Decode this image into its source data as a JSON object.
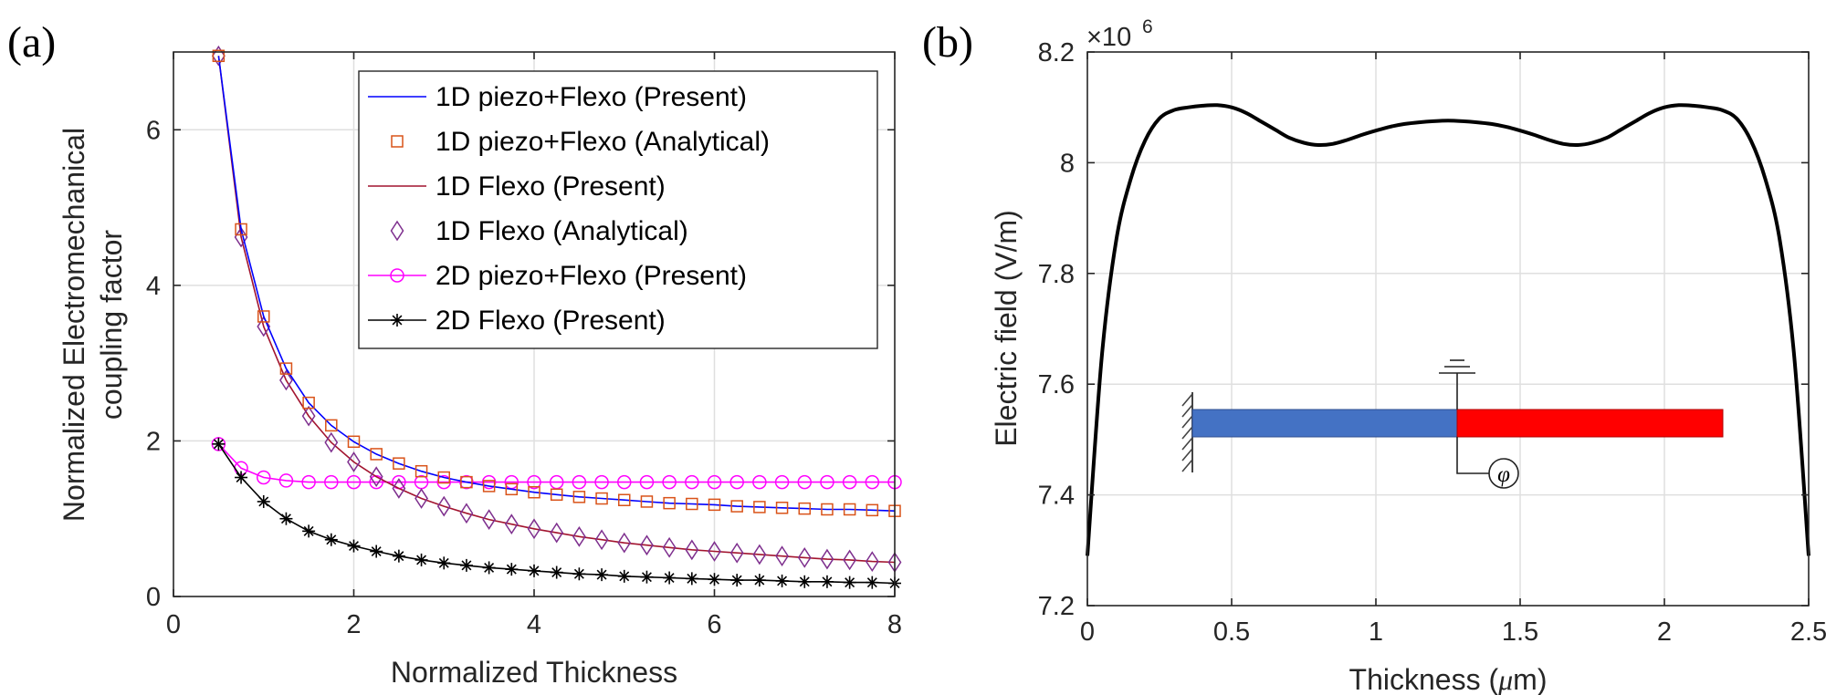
{
  "chart_data": [
    {
      "panel_label": "(a)",
      "type": "line",
      "xlabel": "Normalized Thickness",
      "ylabel_lines": [
        "Normalized Electromechanical",
        "coupling factor"
      ],
      "xlim": [
        0,
        8
      ],
      "ylim": [
        0,
        7
      ],
      "xticks": [
        0,
        2,
        4,
        6,
        8
      ],
      "yticks": [
        0,
        2,
        4,
        6
      ],
      "grid": true,
      "legend_position": "top-right",
      "series": [
        {
          "name": "1D piezo+Flexo (Present)",
          "color": "#0000ff",
          "marker": "none",
          "line": true,
          "x": [
            0.5,
            0.75,
            1.0,
            1.25,
            1.5,
            1.75,
            2.0,
            2.25,
            2.5,
            2.75,
            3.0,
            3.25,
            3.5,
            3.75,
            4.0,
            4.25,
            4.5,
            4.75,
            5.0,
            5.25,
            5.5,
            5.75,
            6.0,
            6.25,
            6.5,
            6.75,
            7.0,
            7.25,
            7.5,
            7.75,
            8.0
          ],
          "y": [
            6.95,
            4.72,
            3.6,
            2.93,
            2.49,
            2.2,
            1.99,
            1.83,
            1.71,
            1.61,
            1.53,
            1.47,
            1.42,
            1.38,
            1.34,
            1.31,
            1.28,
            1.26,
            1.24,
            1.22,
            1.2,
            1.19,
            1.18,
            1.16,
            1.15,
            1.14,
            1.13,
            1.12,
            1.12,
            1.11,
            1.1
          ]
        },
        {
          "name": "1D piezo+Flexo (Analytical)",
          "color": "#d95319",
          "marker": "square",
          "line": false,
          "x": [
            0.5,
            0.75,
            1.0,
            1.25,
            1.5,
            1.75,
            2.0,
            2.25,
            2.5,
            2.75,
            3.0,
            3.25,
            3.5,
            3.75,
            4.0,
            4.25,
            4.5,
            4.75,
            5.0,
            5.25,
            5.5,
            5.75,
            6.0,
            6.25,
            6.5,
            6.75,
            7.0,
            7.25,
            7.5,
            7.75,
            8.0
          ],
          "y": [
            6.95,
            4.72,
            3.6,
            2.93,
            2.49,
            2.2,
            1.99,
            1.83,
            1.71,
            1.61,
            1.53,
            1.47,
            1.42,
            1.38,
            1.34,
            1.31,
            1.28,
            1.26,
            1.24,
            1.22,
            1.2,
            1.19,
            1.18,
            1.16,
            1.15,
            1.14,
            1.13,
            1.12,
            1.12,
            1.11,
            1.1
          ]
        },
        {
          "name": "1D Flexo (Present)",
          "color": "#a2142f",
          "marker": "none",
          "line": true,
          "x": [
            0.5,
            0.75,
            1.0,
            1.25,
            1.5,
            1.75,
            2.0,
            2.25,
            2.5,
            2.75,
            3.0,
            3.25,
            3.5,
            3.75,
            4.0,
            4.25,
            4.5,
            4.75,
            5.0,
            5.25,
            5.5,
            5.75,
            6.0,
            6.25,
            6.5,
            6.75,
            7.0,
            7.25,
            7.5,
            7.75,
            8.0
          ],
          "y": [
            6.95,
            4.62,
            3.47,
            2.78,
            2.32,
            1.98,
            1.73,
            1.54,
            1.39,
            1.26,
            1.16,
            1.07,
            0.99,
            0.93,
            0.87,
            0.82,
            0.77,
            0.73,
            0.69,
            0.66,
            0.63,
            0.6,
            0.58,
            0.56,
            0.54,
            0.52,
            0.5,
            0.48,
            0.47,
            0.45,
            0.44
          ]
        },
        {
          "name": "1D Flexo (Analytical)",
          "color": "#7e2f8e",
          "marker": "diamond",
          "line": false,
          "x": [
            0.5,
            0.75,
            1.0,
            1.25,
            1.5,
            1.75,
            2.0,
            2.25,
            2.5,
            2.75,
            3.0,
            3.25,
            3.5,
            3.75,
            4.0,
            4.25,
            4.5,
            4.75,
            5.0,
            5.25,
            5.5,
            5.75,
            6.0,
            6.25,
            6.5,
            6.75,
            7.0,
            7.25,
            7.5,
            7.75,
            8.0
          ],
          "y": [
            6.95,
            4.62,
            3.47,
            2.78,
            2.32,
            1.98,
            1.73,
            1.54,
            1.39,
            1.26,
            1.16,
            1.07,
            0.99,
            0.93,
            0.87,
            0.82,
            0.77,
            0.73,
            0.69,
            0.66,
            0.63,
            0.6,
            0.58,
            0.56,
            0.54,
            0.52,
            0.5,
            0.48,
            0.47,
            0.45,
            0.44
          ]
        },
        {
          "name": "2D piezo+Flexo (Present)",
          "color": "#ff00ff",
          "marker": "circle",
          "line": true,
          "x": [
            0.5,
            0.75,
            1.0,
            1.25,
            1.5,
            1.75,
            2.0,
            2.25,
            2.5,
            2.75,
            3.0,
            3.25,
            3.5,
            3.75,
            4.0,
            4.25,
            4.5,
            4.75,
            5.0,
            5.25,
            5.5,
            5.75,
            6.0,
            6.25,
            6.5,
            6.75,
            7.0,
            7.25,
            7.5,
            7.75,
            8.0
          ],
          "y": [
            1.96,
            1.65,
            1.53,
            1.49,
            1.47,
            1.47,
            1.47,
            1.47,
            1.47,
            1.47,
            1.47,
            1.47,
            1.47,
            1.47,
            1.47,
            1.47,
            1.47,
            1.47,
            1.47,
            1.47,
            1.47,
            1.47,
            1.47,
            1.47,
            1.47,
            1.47,
            1.47,
            1.47,
            1.47,
            1.47,
            1.47
          ]
        },
        {
          "name": "2D Flexo (Present)",
          "color": "#000000",
          "marker": "asterisk",
          "line": true,
          "x": [
            0.5,
            0.75,
            1.0,
            1.25,
            1.5,
            1.75,
            2.0,
            2.25,
            2.5,
            2.75,
            3.0,
            3.25,
            3.5,
            3.75,
            4.0,
            4.25,
            4.5,
            4.75,
            5.0,
            5.25,
            5.5,
            5.75,
            6.0,
            6.25,
            6.5,
            6.75,
            7.0,
            7.25,
            7.5,
            7.75,
            8.0
          ],
          "y": [
            1.96,
            1.53,
            1.22,
            1.0,
            0.84,
            0.73,
            0.65,
            0.58,
            0.52,
            0.47,
            0.43,
            0.4,
            0.37,
            0.35,
            0.33,
            0.31,
            0.29,
            0.28,
            0.26,
            0.25,
            0.24,
            0.23,
            0.22,
            0.21,
            0.21,
            0.2,
            0.19,
            0.19,
            0.18,
            0.18,
            0.17
          ]
        }
      ]
    },
    {
      "panel_label": "(b)",
      "type": "line",
      "xlabel": "Thickness (",
      "xlabel_unit_symbol": "μ",
      "xlabel_unit_suffix": "m)",
      "ylabel": "Electric field (V/m)",
      "exponent_base": "×10",
      "exponent_power": "6",
      "xlim": [
        0,
        2.5
      ],
      "ylim": [
        7.2,
        8.2
      ],
      "xticks": [
        0,
        0.5,
        1,
        1.5,
        2,
        2.5
      ],
      "yticks": [
        7.2,
        7.4,
        7.6,
        7.8,
        8,
        8.2
      ],
      "grid": true,
      "series": [
        {
          "name": "Electric field",
          "color": "#000000",
          "x": [
            0,
            0.05,
            0.1,
            0.15,
            0.2,
            0.25,
            0.3,
            0.35,
            0.4,
            0.45,
            0.5,
            0.55,
            0.6,
            0.65,
            0.7,
            0.75,
            0.8,
            0.85,
            0.9,
            0.95,
            1.0,
            1.05,
            1.1,
            1.15,
            1.2,
            1.25,
            1.3,
            1.35,
            1.4,
            1.45,
            1.5,
            1.55,
            1.6,
            1.65,
            1.7,
            1.75,
            1.8,
            1.85,
            1.9,
            1.95,
            2.0,
            2.05,
            2.1,
            2.15,
            2.2,
            2.25,
            2.3,
            2.35,
            2.4,
            2.45,
            2.5
          ],
          "y": [
            7.29,
            7.65,
            7.86,
            7.97,
            8.04,
            8.08,
            8.095,
            8.1,
            8.103,
            8.104,
            8.1,
            8.09,
            8.075,
            8.06,
            8.045,
            8.036,
            8.032,
            8.034,
            8.041,
            8.05,
            8.058,
            8.065,
            8.07,
            8.073,
            8.075,
            8.076,
            8.075,
            8.073,
            8.07,
            8.065,
            8.058,
            8.05,
            8.041,
            8.034,
            8.032,
            8.036,
            8.045,
            8.06,
            8.075,
            8.09,
            8.1,
            8.104,
            8.103,
            8.1,
            8.095,
            8.08,
            8.04,
            7.97,
            7.86,
            7.65,
            7.29
          ]
        }
      ],
      "inset_symbol": "φ",
      "inset_colors": {
        "left_beam": "#4472c4",
        "right_beam": "#ff0000"
      }
    }
  ]
}
